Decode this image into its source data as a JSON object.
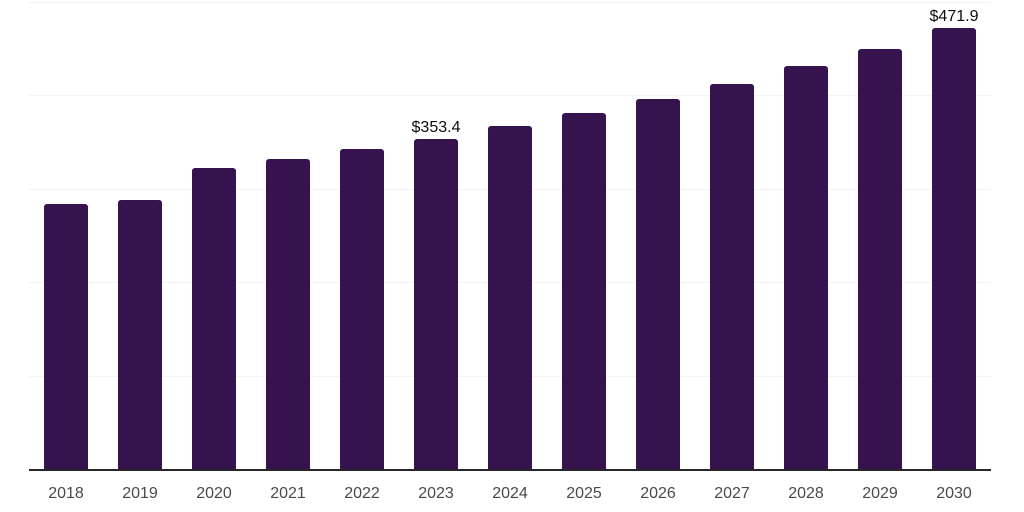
{
  "chart_data": {
    "type": "bar",
    "title": "",
    "xlabel": "",
    "ylabel": "",
    "categories": [
      "2018",
      "2019",
      "2020",
      "2021",
      "2022",
      "2023",
      "2024",
      "2025",
      "2026",
      "2027",
      "2028",
      "2029",
      "2030"
    ],
    "values": [
      283.6,
      288.5,
      322.4,
      331.7,
      342.6,
      353.4,
      367.1,
      380.7,
      395.9,
      411.9,
      431.4,
      450.0,
      471.9
    ],
    "data_labels": [
      "",
      "",
      "",
      "",
      "",
      "$353.4",
      "",
      "",
      "",
      "",
      "",
      "",
      "$471.9"
    ],
    "ylim": [
      0,
      500
    ],
    "gridline_values": [
      100,
      200,
      300,
      400,
      500
    ],
    "grid": true,
    "legend": false,
    "bar_color": "#36124f",
    "axis_line_color": "#26262b",
    "gridline_color": "#f2f2f2",
    "tick_label_color": "#4a4a4a",
    "data_label_color": "#0d0d0d",
    "background_color": "#ffffff"
  }
}
